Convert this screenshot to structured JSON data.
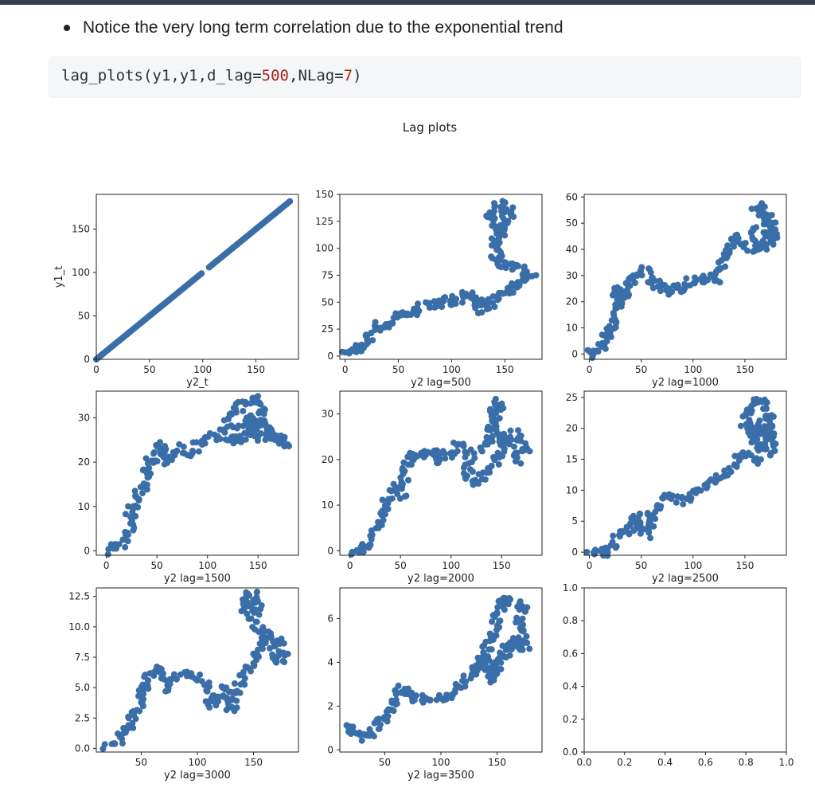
{
  "notebook": {
    "bullet_text": "Notice the very long term correlation due to the exponential trend",
    "code": {
      "fn": "lag_plots",
      "args_prefix": "(y1,y1,d_lag=",
      "d_lag": "500",
      "mid": ",NLag=",
      "nlag": "7",
      "close": ")"
    }
  },
  "chart_data": {
    "type": "scatter",
    "title": "Lag plots",
    "marker_color": "#3a6ea8",
    "subplots": [
      {
        "name": "lag-0",
        "xlabel": "y2_t",
        "ylabel": "y1_t",
        "xlim": [
          0,
          190
        ],
        "ylim": [
          0,
          190
        ],
        "xticks": [
          0,
          50,
          100,
          150
        ],
        "yticks": [
          0,
          50,
          100,
          150
        ],
        "xtick_labels": [
          "0",
          "50",
          "100",
          "150"
        ],
        "ytick_labels": [
          "0",
          "50",
          "100",
          "150"
        ],
        "path": [
          [
            0,
            0
          ],
          [
            100,
            100
          ],
          [
            106,
            106
          ],
          [
            182,
            182
          ]
        ],
        "gap": [
          100,
          106
        ]
      },
      {
        "name": "lag-500",
        "xlabel": "y2 lag=500",
        "ylabel": "",
        "xlim": [
          -5,
          185
        ],
        "ylim": [
          -3,
          150
        ],
        "xticks": [
          0,
          50,
          100,
          150
        ],
        "yticks": [
          0,
          25,
          50,
          75,
          100,
          125,
          150
        ],
        "xtick_labels": [
          "0",
          "50",
          "100",
          "150"
        ],
        "ytick_labels": [
          "0",
          "25",
          "50",
          "75",
          "100",
          "125",
          "150"
        ],
        "path": [
          [
            0,
            0
          ],
          [
            10,
            4
          ],
          [
            18,
            12
          ],
          [
            24,
            20
          ],
          [
            30,
            28
          ],
          [
            40,
            30
          ],
          [
            45,
            35
          ],
          [
            55,
            40
          ],
          [
            65,
            43
          ],
          [
            75,
            46
          ],
          [
            85,
            48
          ],
          [
            95,
            50
          ],
          [
            105,
            53
          ],
          [
            115,
            56
          ],
          [
            125,
            50
          ],
          [
            130,
            42
          ],
          [
            135,
            48
          ],
          [
            145,
            55
          ],
          [
            155,
            60
          ],
          [
            165,
            70
          ],
          [
            175,
            75
          ],
          [
            165,
            80
          ],
          [
            150,
            85
          ],
          [
            140,
            90
          ],
          [
            145,
            95
          ],
          [
            140,
            105
          ],
          [
            145,
            115
          ],
          [
            150,
            125
          ],
          [
            155,
            135
          ],
          [
            145,
            140
          ],
          [
            135,
            130
          ],
          [
            140,
            120
          ],
          [
            150,
            112
          ]
        ]
      },
      {
        "name": "lag-1000",
        "xlabel": "y2 lag=1000",
        "ylabel": "",
        "xlim": [
          -5,
          190
        ],
        "ylim": [
          -2,
          61
        ],
        "xticks": [
          0,
          50,
          100,
          150
        ],
        "yticks": [
          0,
          10,
          20,
          30,
          40,
          50,
          60
        ],
        "xtick_labels": [
          "0",
          "50",
          "100",
          "150"
        ],
        "ytick_labels": [
          "0",
          "10",
          "20",
          "30",
          "40",
          "50",
          "60"
        ],
        "path": [
          [
            0,
            0
          ],
          [
            8,
            2
          ],
          [
            15,
            5
          ],
          [
            22,
            10
          ],
          [
            27,
            18
          ],
          [
            25,
            25
          ],
          [
            32,
            20
          ],
          [
            35,
            25
          ],
          [
            40,
            28
          ],
          [
            45,
            30
          ],
          [
            55,
            32
          ],
          [
            62,
            27
          ],
          [
            70,
            25
          ],
          [
            80,
            24
          ],
          [
            90,
            26
          ],
          [
            100,
            28
          ],
          [
            110,
            29
          ],
          [
            120,
            28
          ],
          [
            125,
            32
          ],
          [
            130,
            36
          ],
          [
            135,
            40
          ],
          [
            140,
            45
          ],
          [
            150,
            42
          ],
          [
            160,
            40
          ],
          [
            170,
            44
          ],
          [
            175,
            48
          ],
          [
            168,
            52
          ],
          [
            160,
            55
          ],
          [
            170,
            56
          ],
          [
            178,
            45
          ],
          [
            165,
            40
          ],
          [
            158,
            48
          ]
        ]
      },
      {
        "name": "lag-1500",
        "xlabel": "y2 lag=1500",
        "ylabel": "",
        "xlim": [
          -10,
          190
        ],
        "ylim": [
          -1,
          36
        ],
        "xticks": [
          0,
          50,
          100,
          150
        ],
        "yticks": [
          0,
          10,
          20,
          30
        ],
        "xtick_labels": [
          "0",
          "50",
          "100",
          "150"
        ],
        "ytick_labels": [
          "0",
          "10",
          "20",
          "30"
        ],
        "path": [
          [
            0,
            0
          ],
          [
            10,
            1
          ],
          [
            20,
            3
          ],
          [
            25,
            6
          ],
          [
            22,
            9
          ],
          [
            30,
            12
          ],
          [
            38,
            15
          ],
          [
            42,
            20
          ],
          [
            50,
            22
          ],
          [
            55,
            24
          ],
          [
            58,
            20
          ],
          [
            65,
            21
          ],
          [
            72,
            23
          ],
          [
            80,
            22
          ],
          [
            90,
            24
          ],
          [
            100,
            25
          ],
          [
            110,
            26
          ],
          [
            118,
            28
          ],
          [
            125,
            31
          ],
          [
            135,
            33
          ],
          [
            148,
            35
          ],
          [
            155,
            30
          ],
          [
            160,
            27
          ],
          [
            170,
            26
          ],
          [
            178,
            24
          ],
          [
            165,
            25
          ],
          [
            150,
            26
          ],
          [
            140,
            30
          ],
          [
            130,
            27
          ],
          [
            120,
            24
          ],
          [
            135,
            25
          ],
          [
            150,
            29
          ]
        ]
      },
      {
        "name": "lag-2000",
        "xlabel": "y2 lag=2000",
        "ylabel": "",
        "xlim": [
          -10,
          190
        ],
        "ylim": [
          -1,
          35
        ],
        "xticks": [
          0,
          50,
          100,
          150
        ],
        "yticks": [
          0,
          10,
          20,
          30
        ],
        "xtick_labels": [
          "0",
          "50",
          "100",
          "150"
        ],
        "ytick_labels": [
          "0",
          "10",
          "20",
          "30"
        ],
        "path": [
          [
            0,
            0
          ],
          [
            10,
            0
          ],
          [
            20,
            1
          ],
          [
            25,
            4
          ],
          [
            30,
            7
          ],
          [
            35,
            11
          ],
          [
            45,
            14
          ],
          [
            50,
            12
          ],
          [
            55,
            16
          ],
          [
            60,
            22
          ],
          [
            70,
            21
          ],
          [
            80,
            22
          ],
          [
            90,
            20
          ],
          [
            100,
            22
          ],
          [
            110,
            23
          ],
          [
            120,
            21
          ],
          [
            115,
            16
          ],
          [
            125,
            15
          ],
          [
            135,
            17
          ],
          [
            145,
            19
          ],
          [
            150,
            23
          ],
          [
            155,
            25
          ],
          [
            165,
            26
          ],
          [
            175,
            22
          ],
          [
            165,
            20
          ],
          [
            155,
            24
          ],
          [
            140,
            27
          ],
          [
            140,
            30
          ],
          [
            148,
            33
          ],
          [
            145,
            30
          ],
          [
            138,
            25
          ],
          [
            130,
            22
          ]
        ]
      },
      {
        "name": "lag-2500",
        "xlabel": "y2 lag=2500",
        "ylabel": "",
        "xlim": [
          -5,
          190
        ],
        "ylim": [
          -0.5,
          26
        ],
        "xticks": [
          0,
          50,
          100,
          150
        ],
        "yticks": [
          0,
          5,
          10,
          15,
          20,
          25
        ],
        "xtick_labels": [
          "0",
          "50",
          "100",
          "150"
        ],
        "ytick_labels": [
          "0",
          "5",
          "10",
          "15",
          "20",
          "25"
        ],
        "path": [
          [
            0,
            0
          ],
          [
            10,
            0
          ],
          [
            20,
            0
          ],
          [
            25,
            2
          ],
          [
            32,
            3
          ],
          [
            40,
            4
          ],
          [
            45,
            6
          ],
          [
            50,
            5
          ],
          [
            55,
            3
          ],
          [
            60,
            6
          ],
          [
            68,
            8
          ],
          [
            75,
            9
          ],
          [
            85,
            8
          ],
          [
            95,
            9
          ],
          [
            105,
            10
          ],
          [
            115,
            11
          ],
          [
            125,
            12
          ],
          [
            135,
            13
          ],
          [
            140,
            15
          ],
          [
            150,
            16
          ],
          [
            160,
            15
          ],
          [
            165,
            17
          ],
          [
            175,
            16
          ],
          [
            170,
            20
          ],
          [
            175,
            22
          ],
          [
            165,
            25
          ],
          [
            158,
            24
          ],
          [
            150,
            21
          ],
          [
            160,
            18
          ],
          [
            168,
            21
          ],
          [
            178,
            18
          ],
          [
            155,
            20
          ]
        ]
      },
      {
        "name": "lag-3000",
        "xlabel": "y2 lag=3000",
        "ylabel": "",
        "xlim": [
          10,
          190
        ],
        "ylim": [
          -0.3,
          13.2
        ],
        "xticks": [
          50,
          100,
          150
        ],
        "yticks": [
          0,
          2.5,
          5,
          7.5,
          10,
          12.5
        ],
        "xtick_labels": [
          "50",
          "100",
          "150"
        ],
        "ytick_labels": [
          "0.0",
          "2.5",
          "5.0",
          "7.5",
          "10.0",
          "12.5"
        ],
        "path": [
          [
            20,
            0.3
          ],
          [
            28,
            0.6
          ],
          [
            35,
            1.2
          ],
          [
            40,
            2.0
          ],
          [
            45,
            3.0
          ],
          [
            50,
            4.0
          ],
          [
            55,
            5.5
          ],
          [
            60,
            6.5
          ],
          [
            65,
            6.8
          ],
          [
            70,
            6.0
          ],
          [
            75,
            5.0
          ],
          [
            80,
            6.0
          ],
          [
            90,
            6.2
          ],
          [
            100,
            5.8
          ],
          [
            110,
            4.8
          ],
          [
            112,
            3.5
          ],
          [
            118,
            4.0
          ],
          [
            125,
            5.0
          ],
          [
            130,
            3.2
          ],
          [
            135,
            4.5
          ],
          [
            140,
            6.0
          ],
          [
            148,
            7.0
          ],
          [
            155,
            8.0
          ],
          [
            160,
            9.5
          ],
          [
            170,
            9.0
          ],
          [
            178,
            7.5
          ],
          [
            170,
            7.0
          ],
          [
            165,
            8.5
          ],
          [
            150,
            10.5
          ],
          [
            140,
            12.0
          ],
          [
            150,
            12.8
          ],
          [
            155,
            11.0
          ]
        ]
      },
      {
        "name": "lag-3500",
        "xlabel": "y2 lag=3500",
        "ylabel": "",
        "xlim": [
          10,
          190
        ],
        "ylim": [
          -0.1,
          7.4
        ],
        "xticks": [
          50,
          100,
          150
        ],
        "yticks": [
          0,
          2,
          4,
          6
        ],
        "xtick_labels": [
          "50",
          "100",
          "150"
        ],
        "ytick_labels": [
          "0",
          "2",
          "4",
          "6"
        ],
        "path": [
          [
            20,
            1.3
          ],
          [
            22,
            0.8
          ],
          [
            28,
            0.5
          ],
          [
            35,
            0.5
          ],
          [
            42,
            0.9
          ],
          [
            48,
            1.4
          ],
          [
            55,
            1.8
          ],
          [
            60,
            2.4
          ],
          [
            65,
            2.8
          ],
          [
            70,
            2.6
          ],
          [
            80,
            2.3
          ],
          [
            90,
            2.2
          ],
          [
            100,
            2.4
          ],
          [
            110,
            2.6
          ],
          [
            120,
            3.0
          ],
          [
            125,
            3.3
          ],
          [
            130,
            3.5
          ],
          [
            135,
            4.2
          ],
          [
            140,
            3.8
          ],
          [
            150,
            3.6
          ],
          [
            158,
            4.5
          ],
          [
            165,
            5.0
          ],
          [
            175,
            4.6
          ],
          [
            170,
            5.8
          ],
          [
            175,
            6.6
          ],
          [
            165,
            6.8
          ],
          [
            155,
            6.9
          ],
          [
            150,
            6.0
          ],
          [
            145,
            5.2
          ],
          [
            140,
            4.5
          ],
          [
            145,
            3.2
          ],
          [
            152,
            4.2
          ]
        ]
      },
      {
        "name": "empty",
        "xlabel": "",
        "ylabel": "",
        "xlim": [
          0,
          1
        ],
        "ylim": [
          0,
          1
        ],
        "xticks": [
          0,
          0.2,
          0.4,
          0.6,
          0.8,
          1.0
        ],
        "yticks": [
          0,
          0.2,
          0.4,
          0.6,
          0.8,
          1.0
        ],
        "xtick_labels": [
          "0.0",
          "0.2",
          "0.4",
          "0.6",
          "0.8",
          "1.0"
        ],
        "ytick_labels": [
          "0.0",
          "0.2",
          "0.4",
          "0.6",
          "0.8",
          "1.0"
        ],
        "path": []
      }
    ]
  }
}
